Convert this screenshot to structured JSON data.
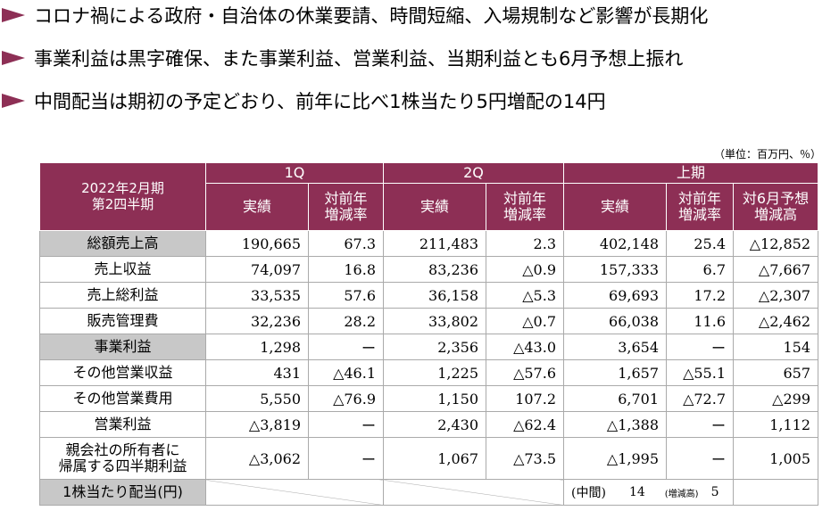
{
  "bullets": [
    "コロナ禍による政府・自治体の休業要請、時間短縮、入場規制など影響が長期化",
    "事業利益は黒字確保、また事業利益、営業利益、当期利益とも6月予想上振れ",
    "中間配当は期初の予定どおり、前年に比べ1株当たり5円増配の14円"
  ],
  "unit_note": "（単位：百万円、％）",
  "table": {
    "corner": "2022年2月期\n第2四半期",
    "groups": [
      "1Q",
      "2Q",
      "上期"
    ],
    "subheaders": {
      "actual": "実績",
      "yoy": "対前年\n増減率",
      "vs_forecast": "対6月予想\n増減高"
    },
    "rows": [
      {
        "label": "総額売上高",
        "shaded": true,
        "q1": "190,665",
        "q1_yoy": "67.3",
        "q2": "211,483",
        "q2_yoy": "2.3",
        "h1": "402,148",
        "h1_yoy": "25.4",
        "h1_fc": "△12,852"
      },
      {
        "label": "売上収益",
        "shaded": false,
        "q1": "74,097",
        "q1_yoy": "16.8",
        "q2": "83,236",
        "q2_yoy": "△0.9",
        "h1": "157,333",
        "h1_yoy": "6.7",
        "h1_fc": "△7,667"
      },
      {
        "label": "売上総利益",
        "shaded": false,
        "q1": "33,535",
        "q1_yoy": "57.6",
        "q2": "36,158",
        "q2_yoy": "△5.3",
        "h1": "69,693",
        "h1_yoy": "17.2",
        "h1_fc": "△2,307"
      },
      {
        "label": "販売管理費",
        "shaded": false,
        "q1": "32,236",
        "q1_yoy": "28.2",
        "q2": "33,802",
        "q2_yoy": "△0.7",
        "h1": "66,038",
        "h1_yoy": "11.6",
        "h1_fc": "△2,462"
      },
      {
        "label": "事業利益",
        "shaded": true,
        "q1": "1,298",
        "q1_yoy": "ー",
        "q2": "2,356",
        "q2_yoy": "△43.0",
        "h1": "3,654",
        "h1_yoy": "ー",
        "h1_fc": "154"
      },
      {
        "label": "その他営業収益",
        "shaded": false,
        "q1": "431",
        "q1_yoy": "△46.1",
        "q2": "1,225",
        "q2_yoy": "△57.6",
        "h1": "1,657",
        "h1_yoy": "△55.1",
        "h1_fc": "657"
      },
      {
        "label": "その他営業費用",
        "shaded": false,
        "q1": "5,550",
        "q1_yoy": "△76.9",
        "q2": "1,150",
        "q2_yoy": "107.2",
        "h1": "6,701",
        "h1_yoy": "△72.7",
        "h1_fc": "△299"
      },
      {
        "label": "営業利益",
        "shaded": false,
        "q1": "△3,819",
        "q1_yoy": "ー",
        "q2": "2,430",
        "q2_yoy": "△62.4",
        "h1": "△1,388",
        "h1_yoy": "ー",
        "h1_fc": "1,112"
      },
      {
        "label": "親会社の所有者に\n帰属する四半期利益",
        "shaded": false,
        "tall": true,
        "q1": "△3,062",
        "q1_yoy": "ー",
        "q2": "1,067",
        "q2_yoy": "△73.5",
        "h1": "△1,995",
        "h1_yoy": "ー",
        "h1_fc": "1,005"
      }
    ],
    "dividend": {
      "label": "1株当たり配当(円)",
      "interim_label": "(中間)",
      "interim_value": "14",
      "increase_label": "(増減高)",
      "increase_value": "5"
    }
  },
  "colors": {
    "header": "#8d2f55",
    "shaded_label": "#c8c8c8",
    "bullet": "#8d2f55"
  }
}
